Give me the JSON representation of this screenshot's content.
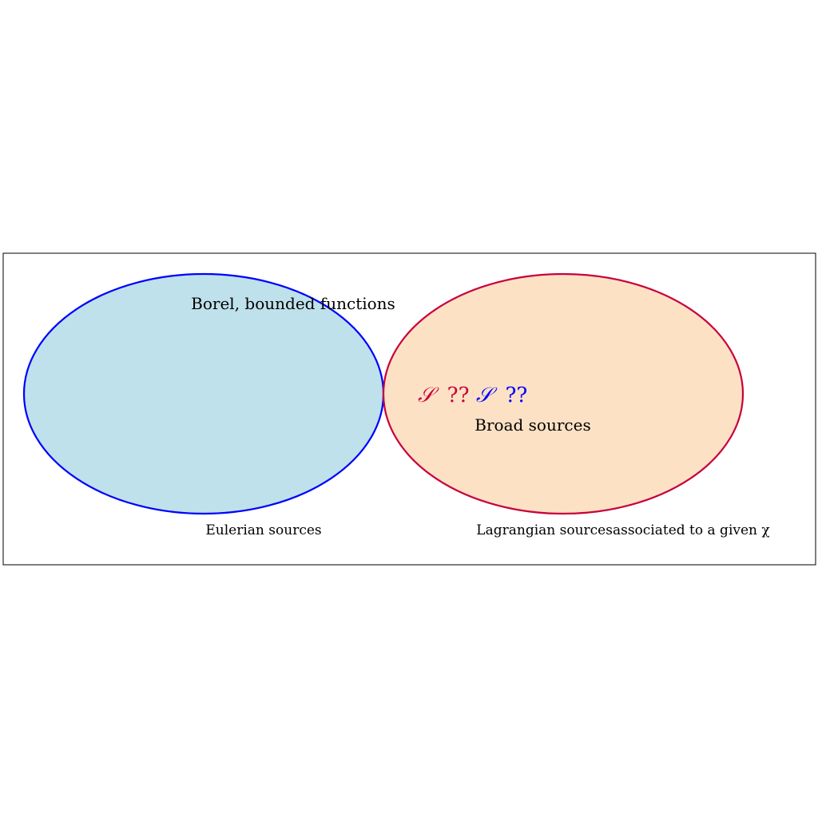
{
  "colors": {
    "frame": "#000000",
    "left_set_fill": "#bee1eb",
    "left_set_stroke": "#0000ff",
    "right_set_fill": "#fde1c4",
    "right_set_stroke": "#c8003c",
    "symbol_red": "#c8003c",
    "symbol_blue": "#0000ff"
  },
  "labels": {
    "borel": "Borel, bounded functions",
    "broad": "Broad sources",
    "eulerian": "Eulerian sources",
    "lagrangian": "Lagrangian sourcesassociated to a given χ"
  },
  "symbols": {
    "red_script": "𝒮",
    "red_ref": " ??",
    "blue_script": "𝒮",
    "blue_ref": " ??"
  }
}
